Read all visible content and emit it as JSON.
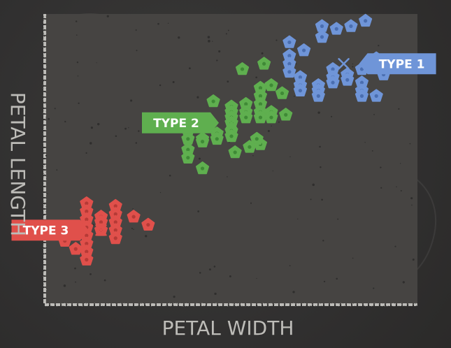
{
  "chart_data": {
    "type": "scatter",
    "title": "",
    "xlabel": "PETAL WIDTH",
    "ylabel": "PETAL LENGTH",
    "xlim": [
      0,
      100
    ],
    "ylim": [
      0,
      100
    ],
    "grid": false,
    "colors": {
      "TYPE 1": "#6f95d8",
      "TYPE 2": "#5faf4f",
      "TYPE 3": "#e0504b"
    },
    "series": [
      {
        "name": "TYPE 1",
        "centroid": {
          "x": 81,
          "y": 83
        },
        "points": [
          {
            "x": 75,
            "y": 97
          },
          {
            "x": 79,
            "y": 96
          },
          {
            "x": 83,
            "y": 97
          },
          {
            "x": 87,
            "y": 99
          },
          {
            "x": 75,
            "y": 93
          },
          {
            "x": 66,
            "y": 91
          },
          {
            "x": 70,
            "y": 88
          },
          {
            "x": 66,
            "y": 86
          },
          {
            "x": 66,
            "y": 83
          },
          {
            "x": 66,
            "y": 80
          },
          {
            "x": 69,
            "y": 78
          },
          {
            "x": 69,
            "y": 75
          },
          {
            "x": 69,
            "y": 73
          },
          {
            "x": 74,
            "y": 75
          },
          {
            "x": 74,
            "y": 73
          },
          {
            "x": 74,
            "y": 71
          },
          {
            "x": 78,
            "y": 81
          },
          {
            "x": 78,
            "y": 78
          },
          {
            "x": 78,
            "y": 76
          },
          {
            "x": 82,
            "y": 79
          },
          {
            "x": 82,
            "y": 77
          },
          {
            "x": 86,
            "y": 81
          },
          {
            "x": 86,
            "y": 76
          },
          {
            "x": 86,
            "y": 73
          },
          {
            "x": 86,
            "y": 71
          },
          {
            "x": 90,
            "y": 85
          },
          {
            "x": 92,
            "y": 79
          },
          {
            "x": 92,
            "y": 83
          },
          {
            "x": 90,
            "y": 71
          }
        ]
      },
      {
        "name": "TYPE 2",
        "centroid": {
          "x": 50,
          "y": 61
        },
        "points": [
          {
            "x": 53,
            "y": 81
          },
          {
            "x": 59,
            "y": 83
          },
          {
            "x": 45,
            "y": 69
          },
          {
            "x": 50,
            "y": 67
          },
          {
            "x": 50,
            "y": 65
          },
          {
            "x": 50,
            "y": 63
          },
          {
            "x": 50,
            "y": 61
          },
          {
            "x": 50,
            "y": 58
          },
          {
            "x": 50,
            "y": 56
          },
          {
            "x": 54,
            "y": 68
          },
          {
            "x": 54,
            "y": 65
          },
          {
            "x": 54,
            "y": 63
          },
          {
            "x": 58,
            "y": 74
          },
          {
            "x": 58,
            "y": 71
          },
          {
            "x": 58,
            "y": 68
          },
          {
            "x": 58,
            "y": 65
          },
          {
            "x": 58,
            "y": 63
          },
          {
            "x": 61,
            "y": 75
          },
          {
            "x": 61,
            "y": 65
          },
          {
            "x": 61,
            "y": 63
          },
          {
            "x": 64,
            "y": 72
          },
          {
            "x": 65,
            "y": 64
          },
          {
            "x": 46,
            "y": 57
          },
          {
            "x": 46,
            "y": 55
          },
          {
            "x": 42,
            "y": 55
          },
          {
            "x": 37,
            "y": 61
          },
          {
            "x": 38,
            "y": 58
          },
          {
            "x": 38,
            "y": 55
          },
          {
            "x": 38,
            "y": 51
          },
          {
            "x": 38,
            "y": 48
          },
          {
            "x": 42,
            "y": 54
          },
          {
            "x": 55,
            "y": 52
          },
          {
            "x": 58,
            "y": 53
          },
          {
            "x": 51,
            "y": 50
          },
          {
            "x": 42,
            "y": 44
          },
          {
            "x": 57,
            "y": 55
          }
        ]
      },
      {
        "name": "TYPE 3",
        "centroid": {
          "x": 14,
          "y": 21
        },
        "points": [
          {
            "x": 10,
            "y": 31
          },
          {
            "x": 10,
            "y": 28
          },
          {
            "x": 10,
            "y": 25
          },
          {
            "x": 10,
            "y": 22
          },
          {
            "x": 10,
            "y": 19
          },
          {
            "x": 10,
            "y": 16
          },
          {
            "x": 10,
            "y": 13
          },
          {
            "x": 10,
            "y": 10
          },
          {
            "x": 7,
            "y": 14
          },
          {
            "x": 7,
            "y": 21
          },
          {
            "x": 14,
            "y": 26
          },
          {
            "x": 14,
            "y": 24
          },
          {
            "x": 14,
            "y": 21
          },
          {
            "x": 18,
            "y": 30
          },
          {
            "x": 18,
            "y": 27
          },
          {
            "x": 18,
            "y": 24
          },
          {
            "x": 18,
            "y": 21
          },
          {
            "x": 18,
            "y": 18
          },
          {
            "x": 23,
            "y": 26
          },
          {
            "x": 27,
            "y": 23
          },
          {
            "x": 4,
            "y": 17
          }
        ]
      }
    ],
    "annotations": [
      {
        "text": "TYPE 1",
        "series": "TYPE 1"
      },
      {
        "text": "TYPE 2",
        "series": "TYPE 2"
      },
      {
        "text": "TYPE 3",
        "series": "TYPE 3"
      }
    ]
  }
}
